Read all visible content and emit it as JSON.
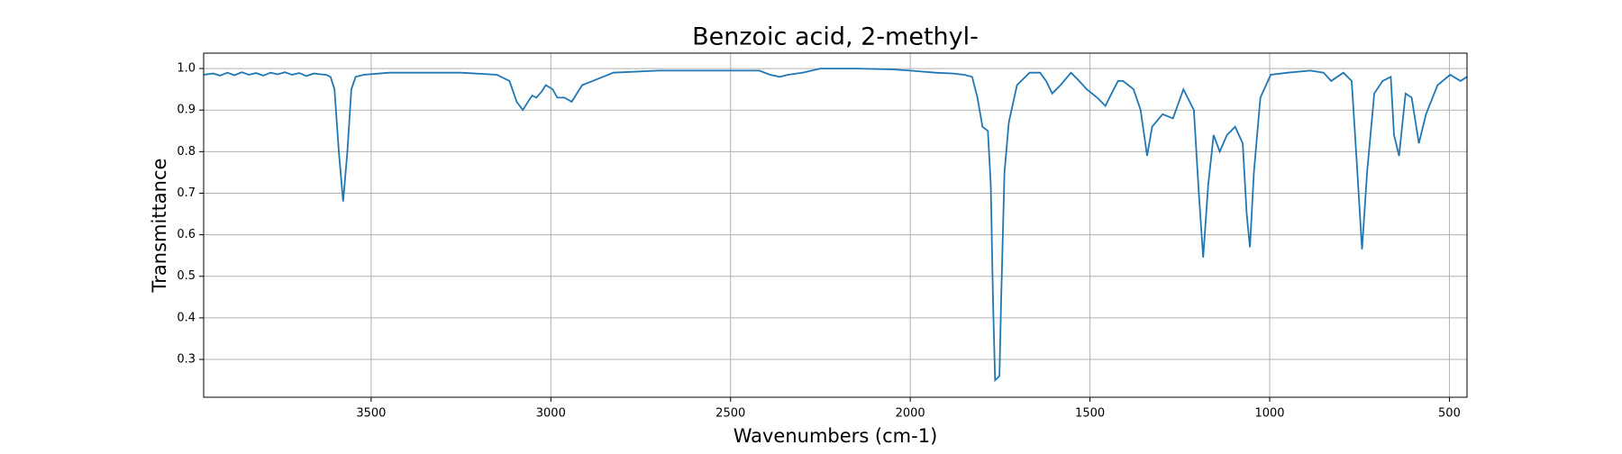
{
  "chart_data": {
    "type": "line",
    "title": "Benzoic acid, 2-methyl-",
    "xlabel": "Wavenumbers (cm-1)",
    "ylabel": "Transmittance",
    "x": [
      3966,
      3940,
      3920,
      3900,
      3880,
      3860,
      3840,
      3820,
      3800,
      3780,
      3760,
      3740,
      3720,
      3700,
      3680,
      3660,
      3640,
      3625,
      3613,
      3602,
      3590,
      3578,
      3566,
      3555,
      3543,
      3520,
      3450,
      3350,
      3250,
      3150,
      3115,
      3095,
      3078,
      3060,
      3052,
      3040,
      3025,
      3014,
      2995,
      2982,
      2962,
      2942,
      2913,
      2884,
      2826,
      2700,
      2600,
      2420,
      2390,
      2363,
      2340,
      2300,
      2250,
      2150,
      2050,
      2000,
      1930,
      1880,
      1850,
      1828,
      1813,
      1799,
      1784,
      1776,
      1770,
      1764,
      1752,
      1747,
      1738,
      1726,
      1703,
      1668,
      1639,
      1622,
      1605,
      1582,
      1553,
      1530,
      1509,
      1480,
      1457,
      1440,
      1422,
      1408,
      1379,
      1359,
      1341,
      1327,
      1298,
      1269,
      1240,
      1211,
      1197,
      1185,
      1171,
      1156,
      1139,
      1119,
      1096,
      1075,
      1064,
      1055,
      1044,
      1026,
      997,
      950,
      887,
      850,
      829,
      795,
      772,
      758,
      743,
      729,
      709,
      686,
      663,
      654,
      640,
      622,
      605,
      585,
      565,
      533,
      498,
      469,
      451
    ],
    "values": [
      0.985,
      0.988,
      0.983,
      0.99,
      0.984,
      0.991,
      0.985,
      0.989,
      0.983,
      0.99,
      0.986,
      0.991,
      0.985,
      0.989,
      0.982,
      0.988,
      0.986,
      0.985,
      0.98,
      0.95,
      0.8,
      0.68,
      0.8,
      0.95,
      0.98,
      0.985,
      0.99,
      0.99,
      0.99,
      0.985,
      0.97,
      0.92,
      0.9,
      0.925,
      0.935,
      0.93,
      0.945,
      0.96,
      0.95,
      0.93,
      0.93,
      0.92,
      0.96,
      0.97,
      0.99,
      0.995,
      0.995,
      0.995,
      0.985,
      0.98,
      0.985,
      0.99,
      1.0,
      1.0,
      0.998,
      0.995,
      0.99,
      0.988,
      0.985,
      0.98,
      0.93,
      0.86,
      0.85,
      0.72,
      0.45,
      0.25,
      0.26,
      0.45,
      0.75,
      0.87,
      0.96,
      0.99,
      0.99,
      0.97,
      0.94,
      0.96,
      0.99,
      0.97,
      0.95,
      0.93,
      0.91,
      0.94,
      0.97,
      0.97,
      0.95,
      0.9,
      0.79,
      0.86,
      0.89,
      0.88,
      0.95,
      0.9,
      0.7,
      0.545,
      0.72,
      0.84,
      0.8,
      0.84,
      0.86,
      0.82,
      0.65,
      0.57,
      0.75,
      0.93,
      0.985,
      0.99,
      0.995,
      0.99,
      0.97,
      0.99,
      0.97,
      0.78,
      0.565,
      0.75,
      0.94,
      0.97,
      0.98,
      0.84,
      0.79,
      0.94,
      0.93,
      0.82,
      0.89,
      0.96,
      0.985,
      0.97,
      0.98
    ],
    "color": "#1f77b4",
    "xlim": [
      3966,
      451
    ],
    "ylim": [
      0.209,
      1.037
    ],
    "xticks": [
      3500,
      3000,
      2500,
      2000,
      1500,
      1000,
      500
    ],
    "yticks": [
      0.3,
      0.4,
      0.5,
      0.6,
      0.7,
      0.8,
      0.9,
      {
        "value": 1,
        "label": "1.0"
      }
    ],
    "grid": true
  }
}
